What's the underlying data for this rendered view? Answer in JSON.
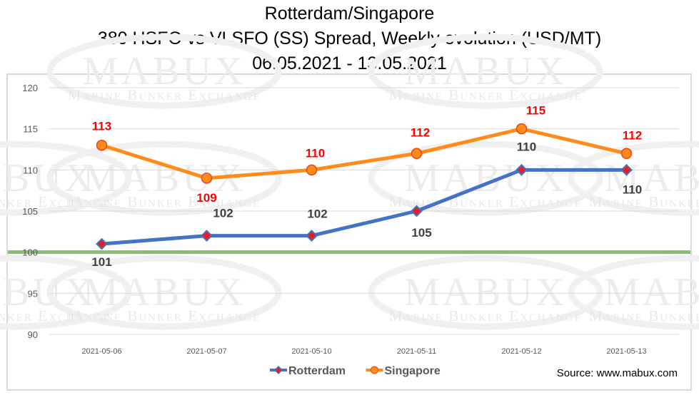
{
  "title": {
    "line1": "Rotterdam/Singapore",
    "line2": "380 HSFO vs VLSFO (SS) Spread, Weekly evolution (USD/MT)",
    "line3": "06.05.2021 - 13.05.2021"
  },
  "source": "Source: www.mabux.com",
  "watermark": {
    "brand": "MABUX",
    "tagline": "Marine Bunker Exchange"
  },
  "chart_data": {
    "type": "line",
    "categories": [
      "2021-05-06",
      "2021-05-07",
      "2021-05-10",
      "2021-05-11",
      "2021-05-12",
      "2021-05-13"
    ],
    "series": [
      {
        "name": "Rotterdam",
        "values": [
          101,
          102,
          102,
          105,
          110,
          110
        ],
        "color": "#4472c4",
        "marker": "diamond",
        "marker_fill": "#e81e1e",
        "label_color": "#404040"
      },
      {
        "name": "Singapore",
        "values": [
          113,
          109,
          110,
          112,
          115,
          112
        ],
        "color": "#ff8c1a",
        "marker": "circle",
        "marker_fill": "#ff8c1a",
        "label_color": "#ff0000"
      }
    ],
    "ylim": [
      90,
      120
    ],
    "yticks": [
      90,
      95,
      100,
      105,
      110,
      115,
      120
    ],
    "reference_line": {
      "value": 100,
      "color": "#8db87a"
    },
    "grid": true,
    "legend": "bottom-center"
  }
}
